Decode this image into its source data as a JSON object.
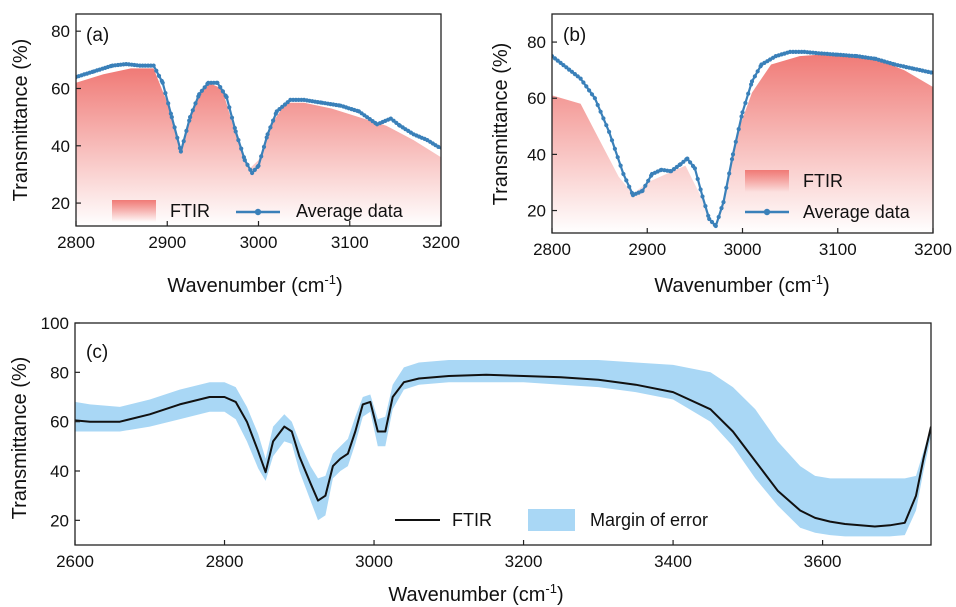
{
  "chart_data": [
    {
      "panel": "(a)",
      "type": "area",
      "xlabel": "Wavenumber (cm",
      "xlabel_sup": "-1",
      "xlabel_end": ")",
      "ylabel": "Transmittance (%)",
      "xlim": [
        2800,
        3200
      ],
      "ylim": [
        12,
        86
      ],
      "xticks": [
        2800,
        2900,
        3000,
        3100,
        3200
      ],
      "yticks": [
        20,
        40,
        60,
        80
      ],
      "legend": [
        "FTIR",
        "Average data"
      ],
      "legend_position": "bottom",
      "fill_color": "#f07a76",
      "line_color": "#3a80b9",
      "series": [
        {
          "name": "FTIR",
          "x": [
            2800,
            2830,
            2860,
            2885,
            2900,
            2915,
            2930,
            2945,
            2960,
            2975,
            2990,
            3000,
            3015,
            3030,
            3050,
            3080,
            3110,
            3140,
            3170,
            3200
          ],
          "values": [
            62,
            65,
            67,
            67,
            55,
            38,
            55,
            62,
            60,
            44,
            32,
            35,
            48,
            55,
            55,
            53,
            50,
            47,
            42,
            36
          ]
        },
        {
          "name": "Average data",
          "x": [
            2800,
            2820,
            2840,
            2855,
            2870,
            2885,
            2895,
            2905,
            2915,
            2925,
            2935,
            2945,
            2955,
            2965,
            2975,
            2985,
            2993,
            3000,
            3010,
            3020,
            3035,
            3050,
            3070,
            3090,
            3110,
            3130,
            3145,
            3155,
            3170,
            3185,
            3200
          ],
          "values": [
            64,
            66,
            68,
            68.5,
            68,
            68,
            62,
            50,
            38,
            50,
            58,
            62,
            62,
            57,
            45,
            35,
            30.5,
            33,
            44,
            52,
            56,
            56,
            55,
            54,
            52,
            47.5,
            49.5,
            47,
            44,
            42,
            39
          ]
        }
      ]
    },
    {
      "panel": "(b)",
      "type": "area",
      "xlabel": "Wavenumber (cm",
      "xlabel_sup": "-1",
      "xlabel_end": ")",
      "ylabel": "Transmittance (%)",
      "xlim": [
        2800,
        3200
      ],
      "ylim": [
        12,
        90
      ],
      "xticks": [
        2800,
        2900,
        3000,
        3100,
        3200
      ],
      "yticks": [
        20,
        40,
        60,
        80
      ],
      "legend": [
        "FTIR",
        "Average data"
      ],
      "legend_position": "bottom-right",
      "fill_color": "#f07a76",
      "line_color": "#3a80b9",
      "series": [
        {
          "name": "FTIR",
          "x": [
            2800,
            2830,
            2850,
            2870,
            2885,
            2900,
            2920,
            2940,
            2955,
            2965,
            2972,
            2980,
            2995,
            3010,
            3030,
            3060,
            3100,
            3140,
            3170,
            3200
          ],
          "values": [
            61,
            58,
            45,
            32,
            26,
            30,
            33,
            36,
            26,
            18,
            14,
            22,
            48,
            62,
            72,
            75,
            76,
            74,
            70,
            64
          ]
        },
        {
          "name": "Average data",
          "x": [
            2800,
            2815,
            2830,
            2845,
            2860,
            2875,
            2885,
            2895,
            2905,
            2915,
            2925,
            2935,
            2942,
            2950,
            2958,
            2965,
            2972,
            2980,
            2990,
            3000,
            3010,
            3020,
            3035,
            3050,
            3065,
            3080,
            3100,
            3120,
            3140,
            3160,
            3180,
            3200
          ],
          "values": [
            75,
            71,
            67,
            60,
            48,
            33,
            25.5,
            27,
            33,
            34.5,
            34,
            36.5,
            38.5,
            35,
            25,
            17,
            14.5,
            23,
            40,
            55,
            66,
            72,
            75,
            76.5,
            76.5,
            76,
            75.5,
            75,
            74,
            72,
            70.5,
            69
          ]
        }
      ]
    },
    {
      "panel": "(c)",
      "type": "line",
      "xlabel": "Wavenumber (cm",
      "xlabel_sup": "-1",
      "xlabel_end": ")",
      "ylabel": "Transmittance (%)",
      "xlim": [
        2600,
        3745
      ],
      "ylim": [
        10,
        100
      ],
      "xticks": [
        2600,
        2800,
        3000,
        3200,
        3400,
        3600
      ],
      "yticks": [
        20,
        40,
        60,
        80,
        100
      ],
      "legend": [
        "FTIR",
        "Margin of error"
      ],
      "legend_position": "bottom",
      "line_color": "#111111",
      "band_color": "#a9d7f5",
      "series": [
        {
          "name": "FTIR",
          "x": [
            2600,
            2620,
            2660,
            2700,
            2740,
            2780,
            2800,
            2815,
            2830,
            2845,
            2855,
            2865,
            2880,
            2890,
            2900,
            2915,
            2925,
            2935,
            2945,
            2955,
            2965,
            2975,
            2985,
            2995,
            3005,
            3015,
            3025,
            3040,
            3060,
            3100,
            3150,
            3200,
            3250,
            3300,
            3350,
            3400,
            3450,
            3480,
            3510,
            3540,
            3570,
            3590,
            3610,
            3630,
            3650,
            3670,
            3690,
            3710,
            3725,
            3735,
            3745
          ],
          "values": [
            60.5,
            60,
            60,
            63,
            67,
            70,
            70,
            68,
            60,
            48,
            39.5,
            52,
            58,
            56,
            46,
            35,
            28,
            30,
            42,
            45,
            47,
            56,
            67,
            68,
            56,
            56,
            70,
            76,
            77.5,
            78.5,
            79,
            78.5,
            78,
            77,
            75,
            72,
            65,
            56,
            44,
            32,
            24,
            21,
            19.5,
            18.5,
            18,
            17.5,
            18,
            19,
            30,
            45,
            58
          ]
        },
        {
          "name": "Margin of error",
          "x": [
            2600,
            2620,
            2660,
            2700,
            2740,
            2780,
            2800,
            2815,
            2830,
            2845,
            2855,
            2865,
            2880,
            2890,
            2900,
            2915,
            2925,
            2935,
            2945,
            2955,
            2965,
            2975,
            2985,
            2995,
            3005,
            3015,
            3025,
            3040,
            3060,
            3100,
            3150,
            3200,
            3250,
            3300,
            3350,
            3400,
            3450,
            3480,
            3510,
            3540,
            3570,
            3590,
            3610,
            3630,
            3650,
            3670,
            3690,
            3710,
            3725,
            3735,
            3745
          ],
          "upper": [
            68,
            67,
            66,
            69,
            73,
            76,
            76,
            74,
            66,
            55,
            45,
            58,
            63,
            60,
            52,
            42,
            37,
            38,
            47,
            50,
            53,
            62,
            70,
            71,
            61,
            62,
            75,
            82,
            84,
            85,
            85,
            85,
            85,
            85,
            84,
            83,
            80,
            74,
            65,
            52,
            42,
            38,
            37,
            37,
            37,
            37,
            37,
            37,
            38,
            48,
            58
          ],
          "lower": [
            56,
            56,
            56,
            58,
            61,
            64,
            64,
            61,
            52,
            41,
            36,
            46,
            52,
            51,
            40,
            28,
            20,
            22,
            37,
            40,
            42,
            51,
            62,
            64,
            50,
            50,
            65,
            73,
            75,
            76,
            76,
            76,
            75,
            74,
            72,
            69,
            60,
            50,
            37,
            26,
            17,
            15,
            14,
            13.5,
            13.5,
            13.5,
            13.5,
            14,
            24,
            40,
            54
          ]
        }
      ]
    }
  ]
}
